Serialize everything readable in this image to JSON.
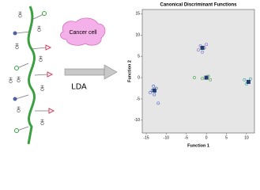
{
  "diagram": {
    "cloud_label": "Cancer cell",
    "arrow_label": "LDA",
    "oh_labels": [
      "OH",
      "OH",
      "OH",
      "OH",
      "OH",
      "OH",
      "OH",
      "OH",
      "OH"
    ]
  },
  "chart_data": {
    "type": "scatter",
    "title": "Canonical Discriminant Functions",
    "x_label": "Function 1",
    "y_label": "Function 2",
    "xlim": [
      -16,
      12
    ],
    "ylim": [
      -13,
      16
    ],
    "xticks": [
      -15,
      -10,
      -5,
      0,
      5,
      10
    ],
    "yticks": [
      -10,
      -5,
      0,
      5,
      10,
      15
    ],
    "grid": false,
    "background": "#e6e6e6",
    "series": [
      {
        "color": "#4060c0",
        "marker": "circle",
        "x": [
          -13.5,
          -12.5,
          -13,
          -14,
          -12,
          -13.2,
          -12.8
        ],
        "y": [
          -3,
          -2.5,
          -4,
          -3.5,
          -6,
          -2,
          -3.2
        ]
      },
      {
        "color": "#8060c0",
        "marker": "circle",
        "x": [
          -1.5,
          -0.5,
          -1,
          -2,
          0
        ],
        "y": [
          7.5,
          7,
          6,
          6.5,
          7.8
        ]
      },
      {
        "color": "#40a040",
        "marker": "circle",
        "x": [
          -3,
          0,
          1,
          0.5,
          -1
        ],
        "y": [
          0,
          0,
          -0.5,
          0.3,
          -0.2
        ]
      },
      {
        "color": "#30a090",
        "marker": "circle",
        "x": [
          9.5,
          10.5,
          11,
          10
        ],
        "y": [
          -0.5,
          -1,
          -0.3,
          -1.5
        ]
      },
      {
        "color": "#1f3f6e",
        "marker": "square",
        "x": [
          -13,
          -1,
          0,
          10.5
        ],
        "y": [
          -3,
          7,
          0,
          -1
        ]
      }
    ]
  }
}
